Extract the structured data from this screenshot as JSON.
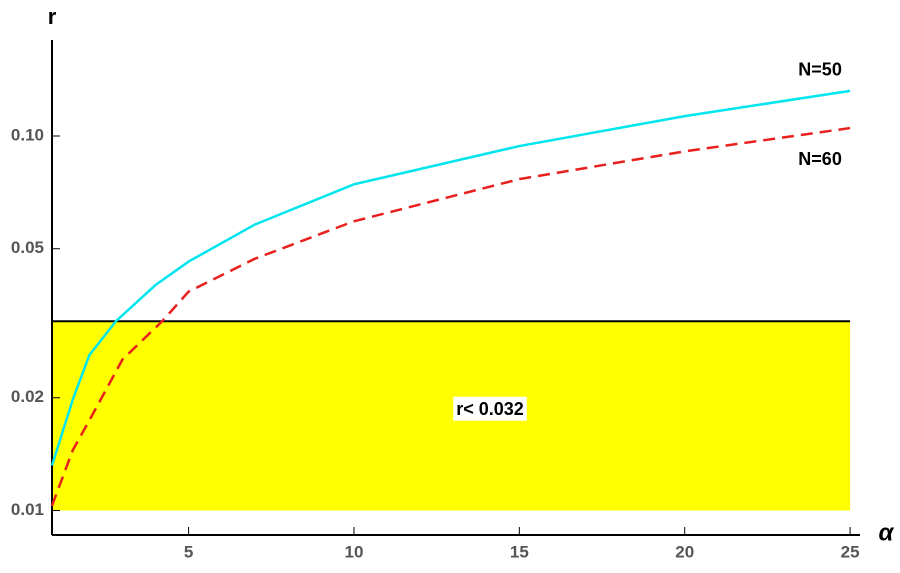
{
  "chart_data": {
    "type": "line",
    "xlabel": "α",
    "ylabel": "r",
    "xlim": [
      0.87,
      25.3
    ],
    "ylim": [
      0.0086,
      0.175
    ],
    "ylog": true,
    "xticks": [
      5,
      10,
      15,
      20,
      25
    ],
    "yticks": [
      0.01,
      0.02,
      0.05,
      {
        "value": 0.1,
        "label": "0.10"
      }
    ],
    "region": {
      "y": [
        0.01,
        0.032
      ],
      "x_end": 25,
      "color": "#ffff00",
      "label": "r< 0.032"
    },
    "series": [
      {
        "name": "N=50",
        "color": "#00e5ee",
        "dash": false,
        "x": [
          0.87,
          1.5,
          2,
          2.8,
          4,
          5,
          7,
          10,
          15,
          20,
          25
        ],
        "values": [
          0.0132,
          0.0198,
          0.026,
          0.032,
          0.04,
          0.0462,
          0.058,
          0.0743,
          0.094,
          0.113,
          0.132
        ]
      },
      {
        "name": "N=60",
        "color": "#e8201e",
        "dash": true,
        "x": [
          0.87,
          1.5,
          2,
          3,
          4.2,
          5,
          7,
          10,
          15,
          20,
          25
        ],
        "values": [
          0.0103,
          0.0145,
          0.0174,
          0.0253,
          0.032,
          0.0384,
          0.047,
          0.0592,
          0.0767,
          0.091,
          0.105
        ]
      }
    ]
  }
}
